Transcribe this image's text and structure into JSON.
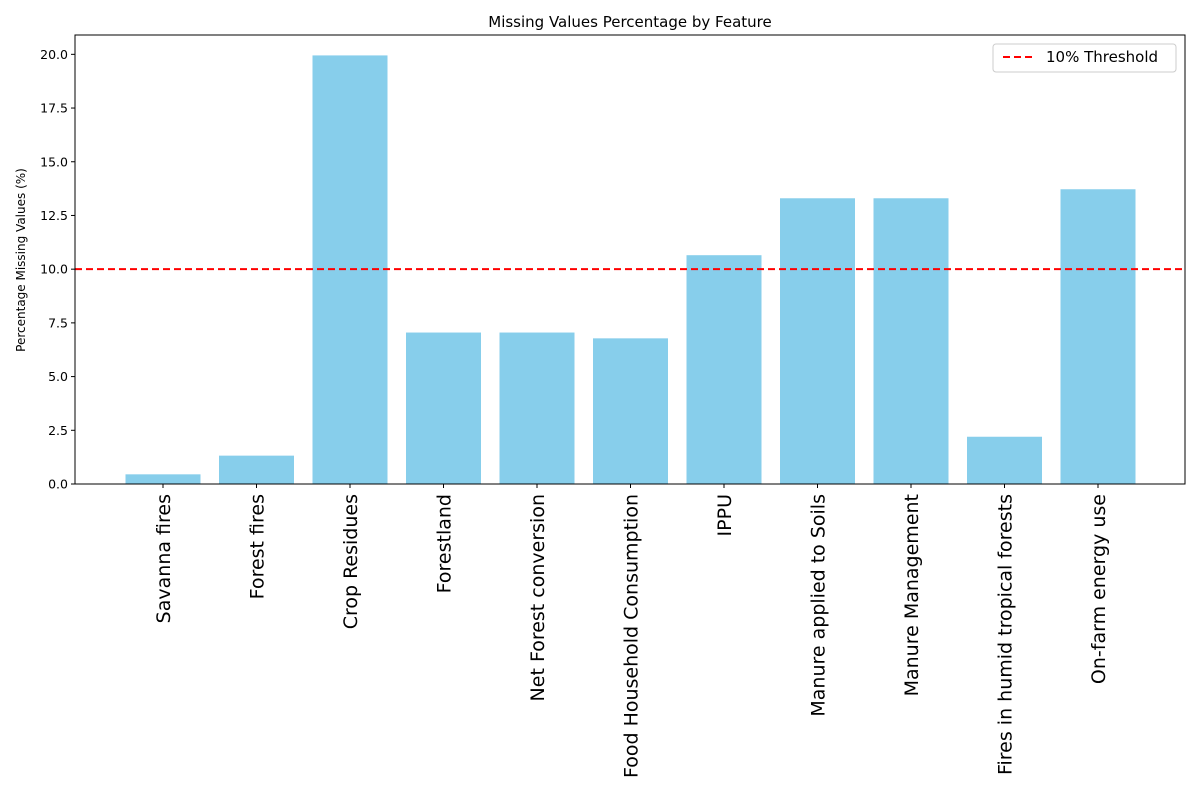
{
  "chart_data": {
    "type": "bar",
    "title": "Missing Values Percentage by Feature",
    "xlabel": "",
    "ylabel": "Percentage Missing Values (%)",
    "categories": [
      "Savanna fires",
      "Forest fires",
      "Crop Residues",
      "Forestland",
      "Net Forest conversion",
      "Food Household Consumption",
      "IPPU",
      "Manure applied to Soils",
      "Manure Management",
      "Fires in humid tropical forests",
      "On-farm energy use"
    ],
    "values": [
      0.45,
      1.32,
      19.95,
      7.05,
      7.05,
      6.78,
      10.65,
      13.3,
      13.3,
      2.2,
      13.72
    ],
    "ylim": [
      0,
      20.9
    ],
    "yticks": [
      0.0,
      2.5,
      5.0,
      7.5,
      10.0,
      12.5,
      15.0,
      17.5,
      20.0
    ],
    "ytick_labels": [
      "0.0",
      "2.5",
      "5.0",
      "7.5",
      "10.0",
      "12.5",
      "15.0",
      "17.5",
      "20.0"
    ],
    "bar_color": "#87ceeb",
    "threshold": {
      "value": 10,
      "label": "10% Threshold",
      "color": "#ff0000",
      "style": "dashed"
    },
    "legend": {
      "placement": "top-right"
    },
    "grid": false
  }
}
